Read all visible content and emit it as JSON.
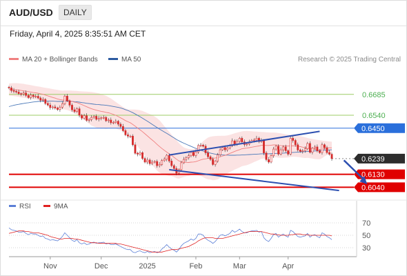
{
  "header": {
    "symbol": "AUD/USD",
    "timeframe": "DAILY"
  },
  "timestamp": "Friday, April 4, 2025 8:35:51 AM CET",
  "legend": {
    "ma20": "MA 20 + Bollinger Bands",
    "ma50": "MA 50",
    "credit": "Research © 2025 Trading Central",
    "rsi": "RSI",
    "rsi_ma": "9MA"
  },
  "colors": {
    "up": "#d52b2b",
    "down": "#d52b2b",
    "ma20": "#f08080",
    "ma50": "#4a78b8",
    "blue_line": "#2a6fdb",
    "red_line": "#e00000",
    "green_line": "#9ccc65",
    "band": "#fbe3e3",
    "rsi": "#5b7fd6",
    "rsi_ma": "#e02020"
  },
  "chart_data": [
    {
      "type": "line",
      "title": "AUD/USD",
      "ylim": [
        0.5965,
        0.6775
      ],
      "x_ticks": [
        "Nov",
        "Dec",
        "2025",
        "Feb",
        "Mar",
        "Apr"
      ],
      "levels": [
        {
          "value": 0.6685,
          "label": "0.6685",
          "style": "green"
        },
        {
          "value": 0.654,
          "label": "0.6540",
          "style": "green"
        },
        {
          "value": 0.645,
          "label": "0.6450",
          "style": "blue"
        },
        {
          "value": 0.6239,
          "label": "0.6239",
          "style": "last"
        },
        {
          "value": 0.613,
          "label": "0.6130",
          "style": "red"
        },
        {
          "value": 0.604,
          "label": "0.6040",
          "style": "red"
        }
      ],
      "close": [
        0.673,
        0.6712,
        0.6706,
        0.6702,
        0.669,
        0.6688,
        0.6695,
        0.6678,
        0.6663,
        0.668,
        0.667,
        0.6672,
        0.666,
        0.6645,
        0.665,
        0.6622,
        0.6611,
        0.6593,
        0.6598,
        0.659,
        0.658,
        0.6596,
        0.662,
        0.6673,
        0.664,
        0.661,
        0.6578,
        0.6566,
        0.6585,
        0.654,
        0.652,
        0.6537,
        0.6505,
        0.651,
        0.6525,
        0.6533,
        0.6512,
        0.6518,
        0.6522,
        0.6525,
        0.6502,
        0.6507,
        0.6488,
        0.649,
        0.6498,
        0.6478,
        0.6462,
        0.6433,
        0.6404,
        0.6395,
        0.6395,
        0.6335,
        0.6276,
        0.627,
        0.628,
        0.624,
        0.6215,
        0.6229,
        0.6204,
        0.6214,
        0.6219,
        0.619,
        0.6198,
        0.6225,
        0.6235,
        0.6262,
        0.6222,
        0.619,
        0.617,
        0.6138,
        0.6162,
        0.621,
        0.6233,
        0.6245,
        0.6259,
        0.6283,
        0.626,
        0.6285,
        0.633,
        0.6332,
        0.6325,
        0.6279,
        0.6252,
        0.6234,
        0.6198,
        0.6222,
        0.6265,
        0.63,
        0.6316,
        0.63,
        0.6313,
        0.6328,
        0.6362,
        0.634,
        0.6358,
        0.638,
        0.6355,
        0.6337,
        0.634,
        0.6355,
        0.6365,
        0.6368,
        0.638,
        0.6357,
        0.6366,
        0.6278,
        0.6232,
        0.6215,
        0.6259,
        0.6305,
        0.6325,
        0.627,
        0.63,
        0.632,
        0.6294,
        0.627,
        0.638,
        0.6365,
        0.6335,
        0.6299,
        0.6289,
        0.6293,
        0.6307,
        0.6344,
        0.6283,
        0.6311,
        0.632,
        0.6293,
        0.6281,
        0.6335,
        0.6315,
        0.6281,
        0.6269,
        0.6239
      ],
      "ma20": [
        0.6718,
        0.6719,
        0.6718,
        0.6717,
        0.6715,
        0.6712,
        0.671,
        0.6707,
        0.6704,
        0.6701,
        0.6698,
        0.6696,
        0.6693,
        0.6689,
        0.6686,
        0.668,
        0.6675,
        0.6669,
        0.6664,
        0.6659,
        0.6653,
        0.6649,
        0.6646,
        0.6646,
        0.6644,
        0.6641,
        0.6636,
        0.6631,
        0.6628,
        0.6621,
        0.6614,
        0.6607,
        0.6599,
        0.6592,
        0.6585,
        0.658,
        0.6575,
        0.6571,
        0.6567,
        0.6564,
        0.656,
        0.6557,
        0.6552,
        0.6546,
        0.654,
        0.6531,
        0.6522,
        0.6513,
        0.6503,
        0.6495,
        0.6488,
        0.6476,
        0.6464,
        0.6451,
        0.6439,
        0.6426,
        0.6411,
        0.6397,
        0.6382,
        0.6368,
        0.6354,
        0.6338,
        0.6323,
        0.6309,
        0.6296,
        0.6284,
        0.6272,
        0.6261,
        0.6248,
        0.6235,
        0.6223,
        0.6218,
        0.6214,
        0.6213,
        0.6212,
        0.6214,
        0.6215,
        0.6218,
        0.6224,
        0.623,
        0.6235,
        0.6237,
        0.624,
        0.6242,
        0.6241,
        0.6243,
        0.6246,
        0.6251,
        0.6257,
        0.6261,
        0.6268,
        0.6275,
        0.6282,
        0.6289,
        0.6295,
        0.6301,
        0.6307,
        0.631,
        0.6312,
        0.6315,
        0.6318,
        0.6321,
        0.6324,
        0.6327,
        0.6331,
        0.6331,
        0.633,
        0.633,
        0.6332,
        0.6334,
        0.6334,
        0.6331,
        0.6329,
        0.6328,
        0.6327,
        0.6326,
        0.6327,
        0.6328,
        0.6327,
        0.6325,
        0.6322,
        0.6318,
        0.6315,
        0.6313,
        0.631,
        0.6307,
        0.6304,
        0.6302,
        0.63,
        0.6303,
        0.6308,
        0.6312,
        0.6314,
        0.6314
      ],
      "ma50": [
        0.66,
        0.6605,
        0.6609,
        0.6613,
        0.6616,
        0.6619,
        0.6622,
        0.6625,
        0.6627,
        0.663,
        0.6632,
        0.6634,
        0.6636,
        0.6637,
        0.6638,
        0.6638,
        0.6638,
        0.6638,
        0.6638,
        0.6637,
        0.6636,
        0.6636,
        0.6636,
        0.6638,
        0.6638,
        0.6637,
        0.6636,
        0.6634,
        0.6633,
        0.6631,
        0.6628,
        0.6626,
        0.6623,
        0.6621,
        0.6619,
        0.6617,
        0.6615,
        0.6614,
        0.6612,
        0.6611,
        0.6609,
        0.6607,
        0.6604,
        0.6601,
        0.6598,
        0.6595,
        0.6591,
        0.6585,
        0.6579,
        0.6573,
        0.6566,
        0.6558,
        0.6549,
        0.6539,
        0.653,
        0.652,
        0.6509,
        0.6499,
        0.6488,
        0.6477,
        0.6466,
        0.6455,
        0.6444,
        0.6434,
        0.6424,
        0.6414,
        0.6404,
        0.6393,
        0.6383,
        0.6372,
        0.6363,
        0.6354,
        0.6346,
        0.6339,
        0.6331,
        0.6324,
        0.6317,
        0.631,
        0.6303,
        0.6297,
        0.6291,
        0.6286,
        0.6281,
        0.6277,
        0.6273,
        0.627,
        0.6268,
        0.6266,
        0.6264,
        0.6263,
        0.6263,
        0.6262,
        0.6262,
        0.6262,
        0.6263,
        0.6263,
        0.6264,
        0.6265,
        0.6266,
        0.6267,
        0.6268,
        0.6269,
        0.627,
        0.6271,
        0.6272,
        0.6272,
        0.6272,
        0.6272,
        0.6273,
        0.6274,
        0.6275,
        0.6275,
        0.6276,
        0.6277,
        0.6278,
        0.6279,
        0.6281,
        0.6282,
        0.6283,
        0.6284,
        0.6285,
        0.6286,
        0.6287,
        0.6288,
        0.6289,
        0.6291,
        0.6292,
        0.6293,
        0.6294,
        0.6296,
        0.6297,
        0.6298,
        0.6299,
        0.63
      ],
      "bb_upper": [
        0.676,
        0.6762,
        0.6763,
        0.6763,
        0.6762,
        0.676,
        0.6758,
        0.6755,
        0.6752,
        0.6749,
        0.6746,
        0.6743,
        0.674,
        0.6737,
        0.6734,
        0.6731,
        0.6728,
        0.6725,
        0.6722,
        0.6719,
        0.6716,
        0.6713,
        0.6711,
        0.6712,
        0.6712,
        0.6712,
        0.6711,
        0.671,
        0.6709,
        0.6707,
        0.6706,
        0.6705,
        0.6704,
        0.6703,
        0.6702,
        0.6699,
        0.6696,
        0.6692,
        0.6687,
        0.6681,
        0.6675,
        0.6666,
        0.6656,
        0.6644,
        0.6632,
        0.662,
        0.6608,
        0.6597,
        0.6588,
        0.658,
        0.658,
        0.658,
        0.658,
        0.6578,
        0.6575,
        0.657,
        0.6563,
        0.6556,
        0.6549,
        0.6541,
        0.6532,
        0.652,
        0.6505,
        0.6485,
        0.6465,
        0.6445,
        0.6425,
        0.6405,
        0.6385,
        0.6367,
        0.6347,
        0.633,
        0.6317,
        0.631,
        0.6306,
        0.6305,
        0.6305,
        0.631,
        0.6325,
        0.6341,
        0.636,
        0.6373,
        0.6385,
        0.6391,
        0.6394,
        0.6396,
        0.6397,
        0.6397,
        0.6398,
        0.6398,
        0.64,
        0.6404,
        0.641,
        0.6415,
        0.642,
        0.6424,
        0.6428,
        0.643,
        0.6431,
        0.643,
        0.6429,
        0.6427,
        0.6426,
        0.6425,
        0.6424,
        0.6423,
        0.6422,
        0.6421,
        0.642,
        0.642,
        0.6419,
        0.6417,
        0.6414,
        0.6411,
        0.6408,
        0.6405,
        0.6404,
        0.6404,
        0.6403,
        0.64,
        0.6396,
        0.6391,
        0.6387,
        0.6382,
        0.6378,
        0.6375,
        0.6372,
        0.6369,
        0.6366,
        0.6364,
        0.6362,
        0.636,
        0.6358,
        0.6356
      ],
      "bb_lower": [
        0.6676,
        0.6676,
        0.6673,
        0.6671,
        0.6668,
        0.6664,
        0.6662,
        0.6659,
        0.6656,
        0.6653,
        0.665,
        0.6649,
        0.6646,
        0.6641,
        0.6638,
        0.6629,
        0.6622,
        0.6613,
        0.6606,
        0.6599,
        0.659,
        0.6585,
        0.6581,
        0.658,
        0.6576,
        0.657,
        0.6561,
        0.6552,
        0.6547,
        0.6535,
        0.6522,
        0.6509,
        0.6494,
        0.6481,
        0.6468,
        0.6461,
        0.6454,
        0.645,
        0.6447,
        0.6447,
        0.6445,
        0.6448,
        0.6448,
        0.6448,
        0.6448,
        0.6442,
        0.6436,
        0.6429,
        0.6418,
        0.641,
        0.6396,
        0.6372,
        0.6348,
        0.6324,
        0.6303,
        0.6282,
        0.6259,
        0.6238,
        0.6215,
        0.6195,
        0.6176,
        0.6156,
        0.6141,
        0.6133,
        0.6127,
        0.6123,
        0.6119,
        0.6117,
        0.6111,
        0.6103,
        0.6099,
        0.6106,
        0.6111,
        0.6116,
        0.6118,
        0.6123,
        0.6125,
        0.6126,
        0.6123,
        0.6119,
        0.611,
        0.6101,
        0.6095,
        0.6093,
        0.6088,
        0.609,
        0.6095,
        0.6105,
        0.6116,
        0.6124,
        0.6136,
        0.6146,
        0.6154,
        0.6163,
        0.617,
        0.6178,
        0.6186,
        0.619,
        0.6193,
        0.62,
        0.6207,
        0.6215,
        0.6222,
        0.6229,
        0.6238,
        0.6239,
        0.6238,
        0.6239,
        0.6244,
        0.6248,
        0.6249,
        0.6245,
        0.6244,
        0.6245,
        0.6246,
        0.6247,
        0.625,
        0.6252,
        0.6251,
        0.625,
        0.6248,
        0.6245,
        0.6243,
        0.6244,
        0.6242,
        0.6239,
        0.6236,
        0.6235,
        0.6234,
        0.6242,
        0.6254,
        0.6264,
        0.627,
        0.6272
      ],
      "trendlines": [
        {
          "name": "wedge-upper",
          "from": {
            "bar": 66,
            "value": 0.6264
          },
          "to": {
            "bar": 128,
            "value": 0.6428
          }
        },
        {
          "name": "wedge-lower",
          "from": {
            "bar": 66,
            "value": 0.6162
          },
          "to": {
            "bar": 136,
            "value": 0.6017
          }
        }
      ],
      "projection": {
        "from": {
          "bar": 138,
          "value": 0.6227
        },
        "to": {
          "bar": 147,
          "value": 0.6075
        }
      }
    },
    {
      "type": "line",
      "title": "RSI",
      "ylim": [
        20,
        80
      ],
      "y_ticks": [
        70,
        50,
        30
      ],
      "series": [
        {
          "name": "RSI",
          "values": [
            62,
            59,
            58,
            57,
            55,
            55,
            56,
            53,
            51,
            53,
            52,
            52,
            50,
            48,
            49,
            45,
            44,
            42,
            43,
            42,
            41,
            44,
            48,
            54,
            50,
            46,
            42,
            40,
            43,
            38,
            36,
            38,
            35,
            36,
            38,
            39,
            37,
            38,
            38,
            39,
            36,
            37,
            35,
            35,
            36,
            34,
            32,
            30,
            28,
            27,
            27,
            23,
            22,
            24,
            25,
            23,
            22,
            24,
            22,
            23,
            24,
            22,
            23,
            28,
            31,
            35,
            31,
            28,
            26,
            23,
            27,
            33,
            37,
            39,
            41,
            44,
            42,
            45,
            52,
            52,
            50,
            45,
            42,
            40,
            37,
            40,
            45,
            50,
            51,
            49,
            51,
            53,
            58,
            55,
            57,
            60,
            56,
            54,
            54,
            56,
            57,
            57,
            58,
            55,
            56,
            46,
            42,
            40,
            45,
            51,
            53,
            47,
            50,
            52,
            49,
            47,
            58,
            56,
            52,
            48,
            47,
            48,
            49,
            53,
            47,
            50,
            51,
            48,
            46,
            54,
            52,
            48,
            46,
            43
          ]
        },
        {
          "name": "9MA",
          "values": [
            53,
            54,
            55,
            56,
            57,
            57,
            57,
            56,
            56,
            55,
            54,
            54,
            54,
            53,
            52,
            51,
            50,
            48,
            47,
            46,
            45,
            44,
            44,
            45,
            45,
            45,
            45,
            44,
            44,
            43,
            42,
            41,
            40,
            39,
            38,
            38,
            38,
            37,
            37,
            37,
            37,
            37,
            37,
            37,
            37,
            36,
            36,
            35,
            34,
            33,
            32,
            31,
            30,
            29,
            28,
            27,
            26,
            25,
            24,
            23,
            23,
            23,
            23,
            23,
            24,
            25,
            26,
            27,
            27,
            27,
            28,
            29,
            30,
            31,
            32,
            34,
            36,
            38,
            41,
            43,
            45,
            46,
            46,
            46,
            46,
            45,
            45,
            45,
            45,
            46,
            47,
            48,
            49,
            50,
            51,
            52,
            53,
            54,
            55,
            56,
            56,
            56,
            56,
            56,
            56,
            55,
            54,
            53,
            52,
            52,
            51,
            51,
            50,
            50,
            50,
            50,
            51,
            51,
            52,
            52,
            52,
            51,
            51,
            51,
            50,
            50,
            50,
            50,
            50,
            50,
            50,
            50,
            50,
            49
          ]
        }
      ]
    }
  ]
}
